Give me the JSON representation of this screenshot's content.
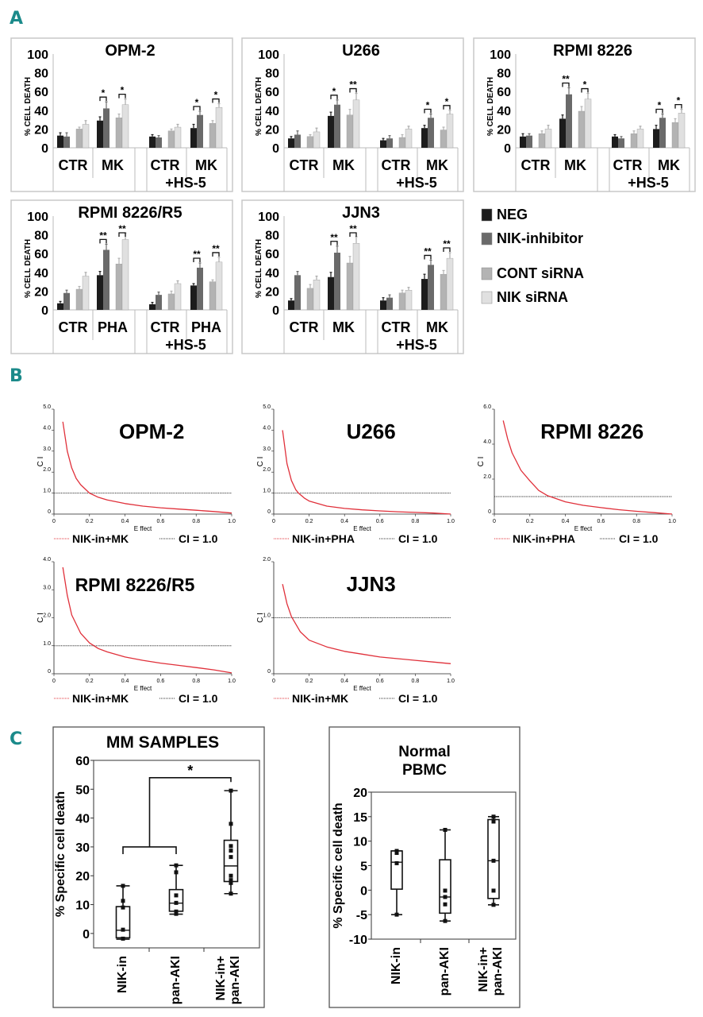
{
  "panel_labels": [
    "A",
    "B",
    "C"
  ],
  "colors": {
    "panel_label": "#1b8a8a",
    "neg": "#1c1c1c",
    "nik_inhibitor": "#6a6a6a",
    "cont_sirna": "#b3b3b3",
    "nik_sirna": "#e0e0e0",
    "ci_curve": "#e0303a",
    "ci_ref": "#333333"
  },
  "legend_a": [
    {
      "label": "NEG",
      "color": "#1c1c1c"
    },
    {
      "label": "NIK-inhibitor",
      "color": "#6a6a6a"
    },
    {
      "label": "CONT siRNA",
      "color": "#b3b3b3"
    },
    {
      "label": "NIK siRNA",
      "color": "#e0e0e0"
    }
  ],
  "chart_data": [
    {
      "type": "bar",
      "title": "OPM-2",
      "ylabel": "% CELL DEATH",
      "ylim": [
        0,
        100
      ],
      "yticks": [
        0,
        20,
        40,
        60,
        80,
        100
      ],
      "series": [
        "NEG",
        "NIK-inhibitor",
        "CONT siRNA",
        "NIK siRNA"
      ],
      "subgroup_label": "+HS-5",
      "groups": [
        {
          "label": "CTR",
          "values": [
            13,
            12,
            20,
            25
          ],
          "errors": [
            3,
            4,
            2,
            4
          ],
          "sig": [
            null,
            null
          ]
        },
        {
          "label": "MK",
          "values": [
            29,
            42,
            32,
            46
          ],
          "errors": [
            4,
            7,
            4,
            6
          ],
          "sig": [
            "*",
            "*"
          ]
        },
        {
          "label": "CTR",
          "values": [
            12,
            11,
            18,
            22
          ],
          "errors": [
            2,
            2,
            2,
            3
          ],
          "sig": [
            null,
            null
          ]
        },
        {
          "label": "MK",
          "values": [
            21,
            35,
            26,
            43
          ],
          "errors": [
            4,
            4,
            3,
            4
          ],
          "sig": [
            "*",
            "*"
          ]
        }
      ]
    },
    {
      "type": "bar",
      "title": "U266",
      "ylabel": "% CELL DEATH",
      "ylim": [
        0,
        100
      ],
      "yticks": [
        0,
        20,
        40,
        60,
        80,
        100
      ],
      "series": [
        "NEG",
        "NIK-inhibitor",
        "CONT siRNA",
        "NIK siRNA"
      ],
      "subgroup_label": "+HS-5",
      "groups": [
        {
          "label": "CTR",
          "values": [
            10,
            14,
            12,
            17
          ],
          "errors": [
            2,
            4,
            2,
            4
          ],
          "sig": [
            null,
            null
          ]
        },
        {
          "label": "MK",
          "values": [
            34,
            46,
            35,
            51
          ],
          "errors": [
            4,
            5,
            6,
            7
          ],
          "sig": [
            "*",
            "**"
          ]
        },
        {
          "label": "CTR",
          "values": [
            8,
            10,
            11,
            20
          ],
          "errors": [
            2,
            3,
            3,
            3
          ],
          "sig": [
            null,
            null
          ]
        },
        {
          "label": "MK",
          "values": [
            21,
            32,
            19,
            36
          ],
          "errors": [
            3,
            4,
            3,
            4
          ],
          "sig": [
            "*",
            "*"
          ]
        }
      ]
    },
    {
      "type": "bar",
      "title": "RPMI 8226",
      "ylabel": "% CELL DEATH",
      "ylim": [
        0,
        100
      ],
      "yticks": [
        0,
        20,
        40,
        60,
        80,
        100
      ],
      "series": [
        "NEG",
        "NIK-inhibitor",
        "CONT siRNA",
        "NIK siRNA"
      ],
      "subgroup_label": "+HS-5",
      "groups": [
        {
          "label": "CTR",
          "values": [
            12,
            13,
            15,
            20
          ],
          "errors": [
            3,
            2,
            3,
            4
          ],
          "sig": [
            null,
            null
          ]
        },
        {
          "label": "MK",
          "values": [
            31,
            57,
            39,
            52
          ],
          "errors": [
            4,
            7,
            5,
            6
          ],
          "sig": [
            "**",
            "*"
          ]
        },
        {
          "label": "CTR",
          "values": [
            12,
            10,
            15,
            20
          ],
          "errors": [
            2,
            2,
            3,
            3
          ],
          "sig": [
            null,
            null
          ]
        },
        {
          "label": "MK",
          "values": [
            20,
            32,
            27,
            37
          ],
          "errors": [
            4,
            4,
            4,
            4
          ],
          "sig": [
            "*",
            "*"
          ]
        }
      ]
    },
    {
      "type": "bar",
      "title": "RPMI 8226/R5",
      "ylabel": "% CELL DEATH",
      "ylim": [
        0,
        100
      ],
      "yticks": [
        0,
        20,
        40,
        60,
        80,
        100
      ],
      "series": [
        "NEG",
        "NIK-inhibitor",
        "CONT siRNA",
        "NIK siRNA"
      ],
      "subgroup_label": "+HS-5",
      "groups": [
        {
          "label": "CTR",
          "values": [
            7,
            18,
            22,
            36
          ],
          "errors": [
            2,
            3,
            3,
            4
          ],
          "sig": [
            null,
            null
          ]
        },
        {
          "label": "PHA",
          "values": [
            37,
            64,
            49,
            75
          ],
          "errors": [
            4,
            6,
            6,
            7
          ],
          "sig": [
            "**",
            "**"
          ]
        },
        {
          "label": "CTR",
          "values": [
            6,
            16,
            17,
            28
          ],
          "errors": [
            2,
            3,
            3,
            3
          ],
          "sig": [
            null,
            null
          ]
        },
        {
          "label": "PHA",
          "values": [
            26,
            45,
            30,
            51
          ],
          "errors": [
            2,
            5,
            2,
            5
          ],
          "sig": [
            "**",
            "**"
          ]
        }
      ]
    },
    {
      "type": "bar",
      "title": "JJN3",
      "ylabel": "% CELL DEATH",
      "ylim": [
        0,
        100
      ],
      "yticks": [
        0,
        20,
        40,
        60,
        80,
        100
      ],
      "series": [
        "NEG",
        "NIK-inhibitor",
        "CONT siRNA",
        "NIK siRNA"
      ],
      "subgroup_label": "+HS-5",
      "groups": [
        {
          "label": "CTR",
          "values": [
            10,
            37,
            23,
            32
          ],
          "errors": [
            2,
            4,
            4,
            4
          ],
          "sig": [
            null,
            null
          ]
        },
        {
          "label": "MK",
          "values": [
            35,
            61,
            50,
            71
          ],
          "errors": [
            5,
            7,
            7,
            7
          ],
          "sig": [
            "**",
            "**"
          ]
        },
        {
          "label": "CTR",
          "values": [
            10,
            13,
            18,
            21
          ],
          "errors": [
            3,
            3,
            3,
            3
          ],
          "sig": [
            null,
            null
          ]
        },
        {
          "label": "MK",
          "values": [
            33,
            48,
            38,
            55
          ],
          "errors": [
            5,
            5,
            4,
            6
          ],
          "sig": [
            "**",
            "**"
          ]
        }
      ]
    },
    {
      "type": "line",
      "title": "OPM-2",
      "xlabel": "E ffect",
      "ylabel": "C I",
      "xlim": [
        0,
        1
      ],
      "ylim": [
        0,
        5
      ],
      "xticks": [
        "0",
        "0.2",
        "0.4",
        "0.6",
        "0.8",
        "1.0"
      ],
      "yticks": [
        {
          "v": 0,
          "t": "0"
        },
        {
          "v": 1,
          "t": "1.0"
        },
        {
          "v": 2,
          "t": "2.0"
        },
        {
          "v": 3,
          "t": "3.0"
        },
        {
          "v": 4,
          "t": "4.0"
        },
        {
          "v": 5,
          "t": "5.0"
        }
      ],
      "series_label": "NIK-in+MK",
      "ref_label": "CI = 1.0",
      "ref_value": 1.0,
      "x": [
        0.05,
        0.075,
        0.1,
        0.125,
        0.15,
        0.2,
        0.25,
        0.3,
        0.4,
        0.5,
        0.6,
        0.7,
        0.8,
        0.9,
        1.0
      ],
      "y": [
        4.4,
        3.0,
        2.2,
        1.7,
        1.4,
        1.0,
        0.8,
        0.67,
        0.5,
        0.38,
        0.3,
        0.24,
        0.18,
        0.12,
        0.05
      ]
    },
    {
      "type": "line",
      "title": "U266",
      "xlabel": "E ffect",
      "ylabel": "C I",
      "xlim": [
        0,
        1
      ],
      "ylim": [
        0,
        5
      ],
      "xticks": [
        "0",
        "0.2",
        "0.4",
        "0.6",
        "0.8",
        "1.0"
      ],
      "yticks": [
        {
          "v": 0,
          "t": "0"
        },
        {
          "v": 1,
          "t": "1.0"
        },
        {
          "v": 2,
          "t": "2.0"
        },
        {
          "v": 3,
          "t": "3.0"
        },
        {
          "v": 4,
          "t": "4.0"
        },
        {
          "v": 5,
          "t": "5.0"
        }
      ],
      "series_label": "NIK-in+PHA",
      "ref_label": "CI = 1.0",
      "ref_value": 1.0,
      "x": [
        0.05,
        0.075,
        0.1,
        0.125,
        0.14,
        0.175,
        0.2,
        0.3,
        0.4,
        0.5,
        0.6,
        0.7,
        0.8,
        0.9,
        1.0
      ],
      "y": [
        4.0,
        2.4,
        1.6,
        1.15,
        1.0,
        0.75,
        0.62,
        0.38,
        0.27,
        0.2,
        0.15,
        0.11,
        0.08,
        0.05,
        0.0
      ]
    },
    {
      "type": "line",
      "title": "RPMI 8226",
      "xlabel": "E ffect",
      "ylabel": "C I",
      "xlim": [
        0,
        1
      ],
      "ylim": [
        0,
        6
      ],
      "xticks": [
        "0",
        "0.2",
        "0.4",
        "0.6",
        "0.8",
        "1.0"
      ],
      "yticks": [
        {
          "v": 0,
          "t": "0"
        },
        {
          "v": 2,
          "t": "2.0"
        },
        {
          "v": 4,
          "t": "4.0"
        },
        {
          "v": 6,
          "t": "6.0"
        }
      ],
      "series_label": "NIK-in+PHA",
      "ref_label": "CI = 1.0",
      "ref_value": 1.0,
      "x": [
        0.05,
        0.075,
        0.1,
        0.15,
        0.2,
        0.25,
        0.3,
        0.4,
        0.5,
        0.6,
        0.7,
        0.8,
        0.9,
        1.0
      ],
      "y": [
        5.35,
        4.3,
        3.5,
        2.5,
        1.9,
        1.35,
        1.05,
        0.7,
        0.5,
        0.37,
        0.25,
        0.16,
        0.08,
        0.0
      ]
    },
    {
      "type": "line",
      "title": "RPMI 8226/R5",
      "xlabel": "E ffect",
      "ylabel": "C I",
      "xlim": [
        0,
        1
      ],
      "ylim": [
        0,
        4
      ],
      "xticks": [
        "0",
        "0.2",
        "0.4",
        "0.6",
        "0.8",
        "1.0"
      ],
      "yticks": [
        {
          "v": 0,
          "t": "0"
        },
        {
          "v": 1,
          "t": "1.0"
        },
        {
          "v": 2,
          "t": "2.0"
        },
        {
          "v": 3,
          "t": "3.0"
        },
        {
          "v": 4,
          "t": "4.0"
        }
      ],
      "series_label": "NIK-in+MK",
      "ref_label": "CI = 1.0",
      "ref_value": 1.0,
      "x": [
        0.05,
        0.075,
        0.1,
        0.15,
        0.2,
        0.25,
        0.3,
        0.4,
        0.5,
        0.6,
        0.7,
        0.8,
        0.9,
        1.0
      ],
      "y": [
        3.8,
        2.8,
        2.1,
        1.45,
        1.1,
        0.9,
        0.78,
        0.6,
        0.48,
        0.38,
        0.3,
        0.22,
        0.14,
        0.03
      ]
    },
    {
      "type": "line",
      "title": "JJN3",
      "xlabel": "E ffect",
      "ylabel": "C I",
      "xlim": [
        0,
        1
      ],
      "ylim": [
        0,
        2
      ],
      "xticks": [
        "0",
        "0.2",
        "0.4",
        "0.6",
        "0.8",
        "1.0"
      ],
      "yticks": [
        {
          "v": 0,
          "t": "0"
        },
        {
          "v": 1,
          "t": "1.0"
        },
        {
          "v": 2,
          "t": "2.0"
        }
      ],
      "series_label": "NIK-in+MK",
      "ref_label": "CI = 1.0",
      "ref_value": 1.0,
      "x": [
        0.05,
        0.075,
        0.1,
        0.15,
        0.2,
        0.3,
        0.4,
        0.5,
        0.6,
        0.7,
        0.8,
        0.9,
        1.0
      ],
      "y": [
        1.6,
        1.25,
        1.02,
        0.75,
        0.6,
        0.48,
        0.4,
        0.35,
        0.3,
        0.27,
        0.24,
        0.21,
        0.18
      ]
    },
    {
      "type": "box",
      "title": "MM SAMPLES",
      "ylabel": "% Specific cell death",
      "ylim": [
        -5,
        60
      ],
      "yticks": [
        0,
        10,
        20,
        30,
        40,
        50,
        60
      ],
      "groups": [
        {
          "label": [
            "NIK-in"
          ],
          "min": -2,
          "q1": -1.5,
          "median": 1.1,
          "q3": 9.3,
          "max": 16.5,
          "points": [
            16.5,
            11.3,
            9,
            1.3,
            -1.8
          ]
        },
        {
          "label": [
            "pan-AKI"
          ],
          "min": 6.7,
          "q1": 7.7,
          "median": 10.5,
          "q3": 15.2,
          "max": 23.6,
          "points": [
            23.6,
            21.2,
            13.2,
            10.6,
            7.6,
            6.8
          ]
        },
        {
          "label": [
            "NIK-in+",
            "pan-AKI"
          ],
          "min": 13.8,
          "q1": 18,
          "median": 23.4,
          "q3": 32.3,
          "max": 49.5,
          "points": [
            49.5,
            38,
            30.3,
            28.7,
            26.5,
            20,
            18.5,
            17.5,
            13.8
          ]
        }
      ],
      "significance": {
        "label": "*",
        "left_level": 30,
        "top_level": 54
      }
    },
    {
      "type": "box",
      "title": "Normal",
      "title2": "PBMC",
      "ylabel": "% Specific cell death",
      "ylim": [
        -10,
        20
      ],
      "yticks": [
        -10,
        -5,
        0,
        5,
        10,
        15,
        20
      ],
      "groups": [
        {
          "label": [
            "NIK-in"
          ],
          "min": -5,
          "q1": 0.2,
          "median": 5.7,
          "q3": 8,
          "max": 8,
          "points": [
            8,
            7.6,
            5.5,
            -5
          ]
        },
        {
          "label": [
            "pan-AKI"
          ],
          "min": -6.3,
          "q1": -4.7,
          "median": -1.4,
          "q3": 6.2,
          "max": 12.3,
          "points": [
            12.3,
            -0.1,
            -1.4,
            -2.9,
            -6.3
          ]
        },
        {
          "label": [
            "NIK-in+",
            "pan-AKI"
          ],
          "min": -3,
          "q1": -1.7,
          "median": 6,
          "q3": 14.4,
          "max": 15,
          "points": [
            15,
            14,
            6,
            -0.1,
            -3
          ]
        }
      ]
    }
  ]
}
